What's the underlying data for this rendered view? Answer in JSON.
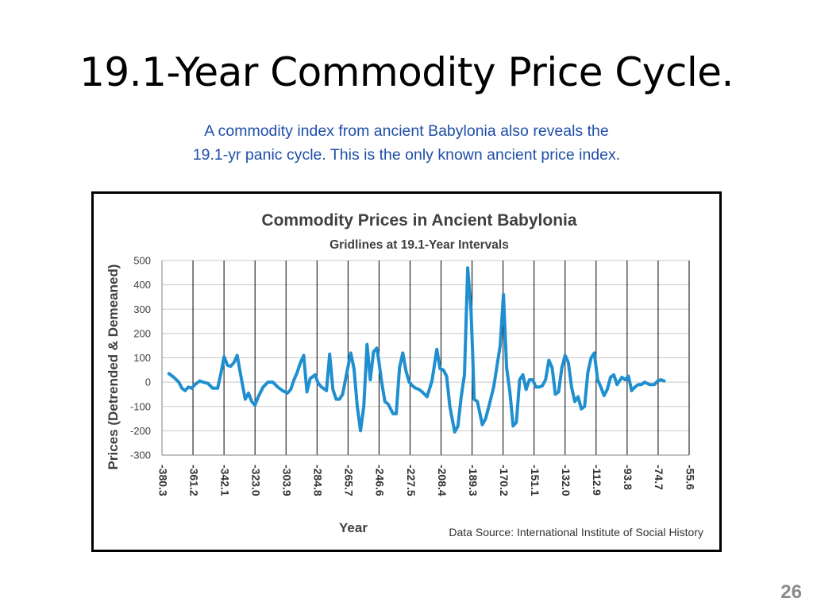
{
  "slide": {
    "title": "19.1-Year Commodity Price Cycle.",
    "subtitle_line1": "A commodity index from ancient Babylonia also reveals the",
    "subtitle_line2": "19.1-yr panic cycle.  This is the only known ancient price index.",
    "page_number": "26"
  },
  "colors": {
    "subtitle": "#1f4ea8",
    "series": "#1f8fd0",
    "frame": "#000000",
    "gridline_major": "#000000",
    "gridline_minor": "#c8c8c8"
  },
  "chart_data": {
    "type": "line",
    "title": "Commodity Prices in Ancient Babylonia",
    "subtitle": "Gridlines at 19.1-Year Intervals",
    "xlabel": "Year",
    "ylabel": "Prices (Detrended & Demeaned)",
    "source": "Data Source:  International Institute of Social History",
    "xlim": [
      -380.3,
      -55.6
    ],
    "ylim": [
      -300,
      500
    ],
    "x_ticks": [
      "-380.3",
      "-361.2",
      "-342.1",
      "-323.0",
      "-303.9",
      "-284.8",
      "-265.7",
      "-246.6",
      "-227.5",
      "-208.4",
      "-189.3",
      "-170.2",
      "-151.1",
      "-132.0",
      "-112.9",
      "-93.8",
      "-74.7",
      "-55.6"
    ],
    "x_tick_values": [
      -380.3,
      -361.2,
      -342.1,
      -323.0,
      -303.9,
      -284.8,
      -265.7,
      -246.6,
      -227.5,
      -208.4,
      -189.3,
      -170.2,
      -151.1,
      -132.0,
      -112.9,
      -93.8,
      -74.7,
      -55.6
    ],
    "y_ticks": [
      500,
      400,
      300,
      200,
      100,
      0,
      -100,
      -200,
      -300
    ],
    "grid": true,
    "series": [
      {
        "x": [
          -376,
          -373,
          -370,
          -368,
          -366,
          -364,
          -362,
          -360,
          -357,
          -355,
          -352,
          -349,
          -346,
          -344,
          -342,
          -340,
          -338,
          -336,
          -334,
          -331,
          -329,
          -327,
          -325,
          -323,
          -321,
          -318,
          -315,
          -312,
          -309,
          -306,
          -303,
          -301,
          -299,
          -297,
          -295,
          -293,
          -291,
          -289,
          -288,
          -286,
          -284,
          -282,
          -279,
          -277,
          -275,
          -273,
          -271,
          -269,
          -267,
          -264,
          -262,
          -260,
          -258,
          -256,
          -254,
          -252,
          -250,
          -248,
          -247,
          -245,
          -243,
          -241,
          -238,
          -236,
          -234,
          -232,
          -230,
          -228,
          -226,
          -224,
          -222,
          -220,
          -217,
          -214,
          -211,
          -209,
          -207,
          -205,
          -203,
          -200,
          -198,
          -196,
          -194,
          -192,
          -190,
          -189,
          -188,
          -186,
          -183,
          -181,
          -179,
          -176,
          -172,
          -170,
          -168,
          -166,
          -164,
          -162,
          -160,
          -158,
          -156,
          -154,
          -152,
          -150,
          -148,
          -146,
          -144,
          -142,
          -140,
          -138,
          -136,
          -134,
          -132,
          -130,
          -128,
          -126,
          -124,
          -122,
          -120,
          -118,
          -116,
          -114,
          -112,
          -110,
          -108,
          -106,
          -104,
          -102,
          -100,
          -97,
          -95,
          -93,
          -91,
          -89,
          -87,
          -85,
          -83,
          -80,
          -77,
          -75,
          -73,
          -71
        ],
        "values": [
          35,
          20,
          0,
          -25,
          -35,
          -20,
          -25,
          -10,
          5,
          0,
          -5,
          -25,
          -25,
          35,
          105,
          70,
          65,
          80,
          110,
          0,
          -70,
          -45,
          -80,
          -95,
          -60,
          -20,
          0,
          0,
          -20,
          -35,
          -45,
          -30,
          10,
          40,
          80,
          110,
          -40,
          15,
          20,
          30,
          -5,
          -20,
          -35,
          115,
          -30,
          -70,
          -70,
          -50,
          20,
          120,
          55,
          -100,
          -200,
          -100,
          155,
          10,
          125,
          140,
          100,
          0,
          -80,
          -90,
          -130,
          -130,
          60,
          120,
          45,
          0,
          -15,
          -25,
          -30,
          -40,
          -60,
          5,
          135,
          55,
          50,
          25,
          -100,
          -205,
          -180,
          -60,
          30,
          470,
          300,
          130,
          -70,
          -80,
          -175,
          -150,
          -100,
          -20,
          150,
          360,
          60,
          -40,
          -180,
          -165,
          10,
          30,
          -30,
          10,
          10,
          -20,
          -20,
          -15,
          10,
          90,
          60,
          -50,
          -40,
          60,
          110,
          80,
          -20,
          -80,
          -60,
          -110,
          -100,
          40,
          100,
          120,
          10,
          -20,
          -55,
          -30,
          20,
          30,
          -10,
          20,
          10,
          25,
          -35,
          -20,
          -10,
          -10,
          0,
          -10,
          -10,
          5,
          10,
          5
        ]
      }
    ]
  }
}
